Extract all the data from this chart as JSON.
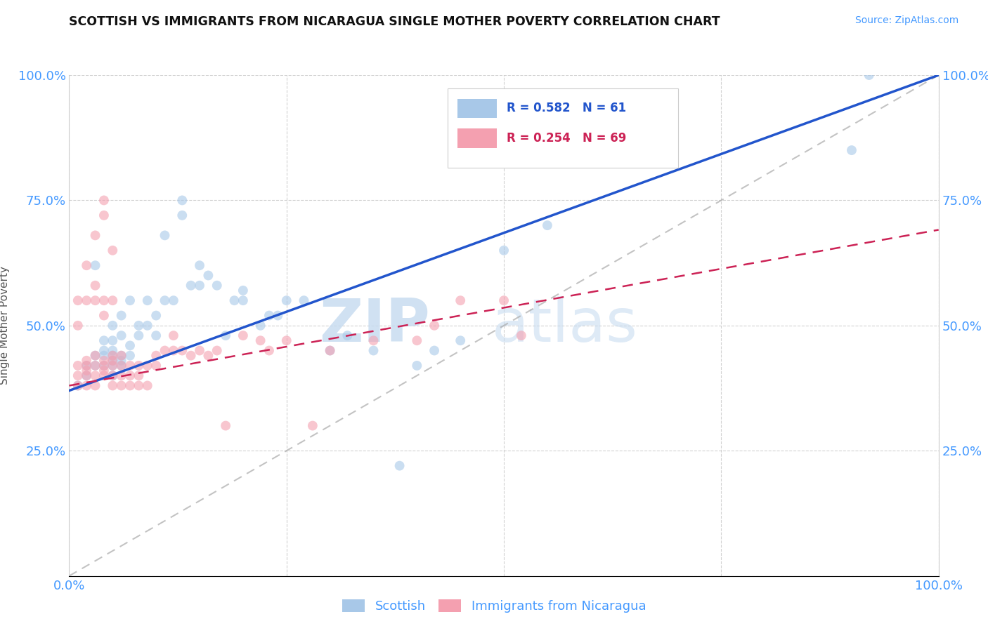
{
  "title": "SCOTTISH VS IMMIGRANTS FROM NICARAGUA SINGLE MOTHER POVERTY CORRELATION CHART",
  "source_text": "Source: ZipAtlas.com",
  "ylabel": "Single Mother Poverty",
  "xlim": [
    0,
    1
  ],
  "ylim": [
    0,
    1
  ],
  "blue_R": 0.582,
  "blue_N": 61,
  "pink_R": 0.254,
  "pink_N": 69,
  "blue_color": "#a8c8e8",
  "pink_color": "#f4a0b0",
  "blue_line_color": "#2255cc",
  "pink_line_color": "#cc2255",
  "legend_label_blue": "Scottish",
  "legend_label_pink": "Immigrants from Nicaragua",
  "watermark_zip": "ZIP",
  "watermark_atlas": "atlas",
  "background_color": "#ffffff",
  "grid_color": "#cccccc",
  "tick_color": "#4499ff",
  "blue_scatter_x": [
    0.01,
    0.02,
    0.02,
    0.03,
    0.03,
    0.03,
    0.04,
    0.04,
    0.04,
    0.04,
    0.05,
    0.05,
    0.05,
    0.05,
    0.05,
    0.05,
    0.05,
    0.06,
    0.06,
    0.06,
    0.06,
    0.06,
    0.07,
    0.07,
    0.07,
    0.08,
    0.08,
    0.09,
    0.09,
    0.1,
    0.1,
    0.11,
    0.11,
    0.12,
    0.13,
    0.13,
    0.14,
    0.15,
    0.15,
    0.16,
    0.17,
    0.18,
    0.19,
    0.2,
    0.2,
    0.22,
    0.23,
    0.24,
    0.25,
    0.27,
    0.3,
    0.32,
    0.35,
    0.38,
    0.4,
    0.42,
    0.45,
    0.5,
    0.55,
    0.9,
    0.92
  ],
  "blue_scatter_y": [
    0.38,
    0.4,
    0.42,
    0.42,
    0.44,
    0.62,
    0.42,
    0.44,
    0.45,
    0.47,
    0.4,
    0.42,
    0.43,
    0.44,
    0.45,
    0.47,
    0.5,
    0.42,
    0.43,
    0.44,
    0.48,
    0.52,
    0.44,
    0.46,
    0.55,
    0.48,
    0.5,
    0.5,
    0.55,
    0.48,
    0.52,
    0.55,
    0.68,
    0.55,
    0.72,
    0.75,
    0.58,
    0.58,
    0.62,
    0.6,
    0.58,
    0.48,
    0.55,
    0.55,
    0.57,
    0.5,
    0.52,
    0.52,
    0.55,
    0.55,
    0.45,
    0.48,
    0.45,
    0.22,
    0.42,
    0.45,
    0.47,
    0.65,
    0.7,
    0.85,
    1.0
  ],
  "pink_scatter_x": [
    0.01,
    0.01,
    0.01,
    0.01,
    0.01,
    0.02,
    0.02,
    0.02,
    0.02,
    0.02,
    0.02,
    0.02,
    0.03,
    0.03,
    0.03,
    0.03,
    0.03,
    0.03,
    0.03,
    0.04,
    0.04,
    0.04,
    0.04,
    0.04,
    0.04,
    0.04,
    0.04,
    0.05,
    0.05,
    0.05,
    0.05,
    0.05,
    0.05,
    0.05,
    0.06,
    0.06,
    0.06,
    0.06,
    0.07,
    0.07,
    0.07,
    0.08,
    0.08,
    0.08,
    0.09,
    0.09,
    0.1,
    0.1,
    0.11,
    0.12,
    0.12,
    0.13,
    0.14,
    0.15,
    0.16,
    0.17,
    0.18,
    0.2,
    0.22,
    0.23,
    0.25,
    0.28,
    0.3,
    0.35,
    0.4,
    0.42,
    0.45,
    0.5,
    0.52
  ],
  "pink_scatter_y": [
    0.38,
    0.4,
    0.42,
    0.5,
    0.55,
    0.38,
    0.4,
    0.41,
    0.42,
    0.43,
    0.55,
    0.62,
    0.38,
    0.4,
    0.42,
    0.44,
    0.55,
    0.58,
    0.68,
    0.4,
    0.41,
    0.42,
    0.43,
    0.52,
    0.55,
    0.72,
    0.75,
    0.38,
    0.4,
    0.42,
    0.43,
    0.44,
    0.55,
    0.65,
    0.38,
    0.4,
    0.42,
    0.44,
    0.38,
    0.4,
    0.42,
    0.38,
    0.4,
    0.42,
    0.38,
    0.42,
    0.42,
    0.44,
    0.45,
    0.45,
    0.48,
    0.45,
    0.44,
    0.45,
    0.44,
    0.45,
    0.3,
    0.48,
    0.47,
    0.45,
    0.47,
    0.3,
    0.45,
    0.47,
    0.47,
    0.5,
    0.55,
    0.55,
    0.48
  ],
  "blue_trend_x0": 0.0,
  "blue_trend_y0": 0.37,
  "blue_trend_x1": 1.0,
  "blue_trend_y1": 1.0,
  "pink_trend_x0": 0.0,
  "pink_trend_y0": 0.38,
  "pink_trend_x1": 0.45,
  "pink_trend_y1": 0.52
}
